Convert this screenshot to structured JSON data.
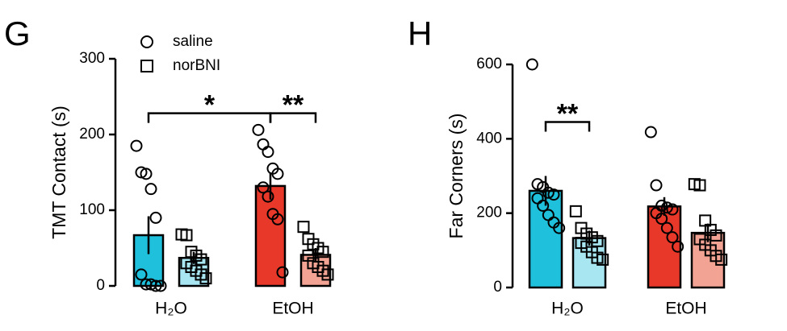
{
  "chart_data": [
    {
      "type": "bar",
      "panel": "G",
      "y_label": "TMT Contact (s)",
      "categories": [
        "H₂O",
        "EtOH"
      ],
      "ylim": [
        0,
        300
      ],
      "yticks": [
        0,
        100,
        200,
        300
      ],
      "legend": true,
      "series": [
        {
          "name": "saline",
          "marker": "circle",
          "colors": [
            "#1fc0dc",
            "#e8382a"
          ],
          "values": [
            67,
            132
          ],
          "errors": [
            25,
            18
          ],
          "points": [
            [
              185,
              150,
              148,
              128,
              90,
              15,
              2,
              2,
              0,
              0
            ],
            [
              206,
              187,
              177,
              155,
              148,
              130,
              118,
              95,
              88,
              18
            ]
          ]
        },
        {
          "name": "norBNI",
          "marker": "square",
          "colors": [
            "#a8e6f2",
            "#f2a393"
          ],
          "values": [
            37,
            41
          ],
          "errors": [
            8,
            9
          ],
          "points": [
            [
              68,
              67,
              45,
              40,
              35,
              30,
              25,
              20,
              15,
              10
            ],
            [
              78,
              62,
              55,
              50,
              45,
              40,
              30,
              25,
              20,
              15
            ]
          ]
        }
      ],
      "annotations": [
        {
          "text": "*",
          "span": [
            [
              "H₂O",
              "saline"
            ],
            [
              "EtOH",
              "saline"
            ]
          ],
          "y": 228
        },
        {
          "text": "**",
          "span": [
            [
              "EtOH",
              "saline"
            ],
            [
              "EtOH",
              "norBNI"
            ]
          ],
          "y": 228
        }
      ]
    },
    {
      "type": "bar",
      "panel": "H",
      "y_label": "Far Corners (s)",
      "categories": [
        "H₂O",
        "EtOH"
      ],
      "ylim": [
        0,
        600
      ],
      "yticks": [
        0,
        200,
        400,
        600
      ],
      "legend": false,
      "series": [
        {
          "name": "saline",
          "marker": "circle",
          "colors": [
            "#1fc0dc",
            "#e8382a"
          ],
          "values": [
            260,
            218
          ],
          "errors": [
            40,
            25
          ],
          "points": [
            [
              600,
              278,
              270,
              255,
              250,
              240,
              220,
              195,
              175,
              160
            ],
            [
              418,
              275,
              220,
              215,
              210,
              200,
              185,
              160,
              135,
              110
            ]
          ]
        },
        {
          "name": "norBNI",
          "marker": "square",
          "colors": [
            "#a8e6f2",
            "#f2a393"
          ],
          "values": [
            133,
            147
          ],
          "errors": [
            20,
            25
          ],
          "points": [
            [
              205,
              160,
              145,
              135,
              125,
              120,
              110,
              95,
              80,
              75
            ],
            [
              278,
              275,
              180,
              155,
              140,
              130,
              115,
              100,
              85,
              75
            ]
          ]
        }
      ],
      "annotations": [
        {
          "text": "**",
          "span": [
            [
              "H₂O",
              "saline"
            ],
            [
              "H₂O",
              "norBNI"
            ]
          ],
          "y": 445
        }
      ]
    }
  ]
}
